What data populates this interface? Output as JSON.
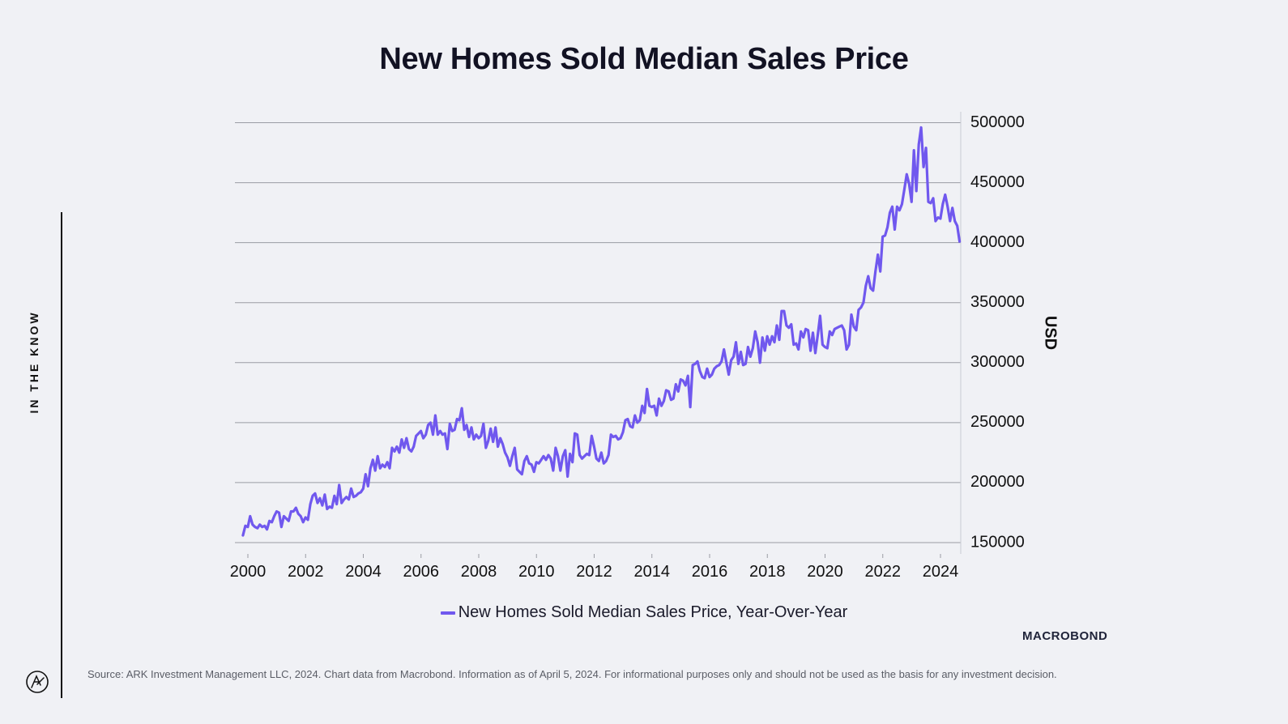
{
  "page": {
    "side_label": "IN THE KNOW",
    "brand": "MACROBOND",
    "source": "Source: ARK Investment Management LLC, 2024. Chart data from Macrobond. Information as of April 5, 2024. For informational purposes only and should not be used as the basis for any investment decision."
  },
  "chart_data": {
    "type": "line",
    "title": "New Homes Sold Median Sales Price",
    "xlabel": "",
    "ylabel": "USD",
    "xlim": [
      1999.7,
      2024.7
    ],
    "ylim": [
      142000,
      508000
    ],
    "x_ticks": [
      2000,
      2002,
      2004,
      2006,
      2008,
      2010,
      2012,
      2014,
      2016,
      2018,
      2020,
      2022,
      2024
    ],
    "y_ticks": [
      150000,
      200000,
      250000,
      300000,
      350000,
      400000,
      450000,
      500000
    ],
    "grid": true,
    "legend": "bottom-center",
    "colors": {
      "series": "#7058ee"
    },
    "series": [
      {
        "name": "New Homes Sold Median Sales Price, Year-Over-Year",
        "start": 1999.83,
        "step": 0.0833333,
        "values": [
          156000,
          164000,
          163000,
          172000,
          165000,
          163000,
          162000,
          165000,
          163000,
          164000,
          161000,
          168000,
          167000,
          172000,
          176000,
          175000,
          163000,
          172000,
          170000,
          168000,
          176000,
          176000,
          179000,
          174000,
          172000,
          167000,
          171000,
          169000,
          182000,
          189000,
          191000,
          183000,
          187000,
          181000,
          190000,
          178000,
          180000,
          179000,
          189000,
          182000,
          198000,
          183000,
          186000,
          188000,
          186000,
          195000,
          188000,
          189000,
          191000,
          192000,
          195000,
          207000,
          197000,
          212000,
          219000,
          210000,
          222000,
          212000,
          215000,
          213000,
          217000,
          212000,
          229000,
          226000,
          230000,
          225000,
          236000,
          229000,
          237000,
          228000,
          226000,
          230000,
          239000,
          241000,
          243000,
          237000,
          240000,
          248000,
          250000,
          240000,
          256000,
          240000,
          243000,
          240000,
          241000,
          228000,
          249000,
          243000,
          244000,
          253000,
          252000,
          262000,
          244000,
          248000,
          238000,
          246000,
          236000,
          240000,
          237000,
          239000,
          249000,
          229000,
          235000,
          245000,
          234000,
          246000,
          230000,
          237000,
          232000,
          225000,
          221000,
          214000,
          222000,
          229000,
          211000,
          209000,
          207000,
          218000,
          222000,
          216000,
          215000,
          209000,
          217000,
          216000,
          219000,
          222000,
          219000,
          223000,
          220000,
          210000,
          229000,
          222000,
          210000,
          222000,
          227000,
          205000,
          224000,
          217000,
          241000,
          240000,
          223000,
          220000,
          222000,
          224000,
          223000,
          239000,
          230000,
          220000,
          218000,
          225000,
          216000,
          218000,
          223000,
          240000,
          238000,
          239000,
          236000,
          237000,
          242000,
          252000,
          253000,
          247000,
          246000,
          256000,
          250000,
          252000,
          264000,
          258000,
          278000,
          264000,
          263000,
          264000,
          256000,
          270000,
          264000,
          268000,
          277000,
          276000,
          269000,
          270000,
          282000,
          276000,
          286000,
          285000,
          281000,
          289000,
          263000,
          298000,
          299000,
          301000,
          293000,
          288000,
          287000,
          295000,
          288000,
          290000,
          295000,
          297000,
          298000,
          301000,
          311000,
          300000,
          290000,
          302000,
          305000,
          317000,
          299000,
          309000,
          298000,
          299000,
          313000,
          305000,
          312000,
          326000,
          317000,
          300000,
          321000,
          310000,
          322000,
          315000,
          322000,
          317000,
          331000,
          319000,
          343000,
          343000,
          331000,
          329000,
          332000,
          315000,
          316000,
          311000,
          326000,
          321000,
          328000,
          327000,
          310000,
          325000,
          308000,
          323000,
          339000,
          315000,
          313000,
          312000,
          326000,
          323000,
          328000,
          329000,
          330000,
          331000,
          327000,
          311000,
          315000,
          340000,
          330000,
          327000,
          344000,
          346000,
          350000,
          364000,
          372000,
          362000,
          360000,
          376000,
          390000,
          376000,
          405000,
          406000,
          413000,
          425000,
          430000,
          411000,
          430000,
          427000,
          432000,
          444000,
          457000,
          449000,
          434000,
          477000,
          443000,
          482000,
          496000,
          463000,
          479000,
          434000,
          433000,
          437000,
          418000,
          421000,
          420000,
          432000,
          440000,
          430000,
          418000,
          429000,
          418000,
          414000,
          401000
        ]
      }
    ]
  }
}
